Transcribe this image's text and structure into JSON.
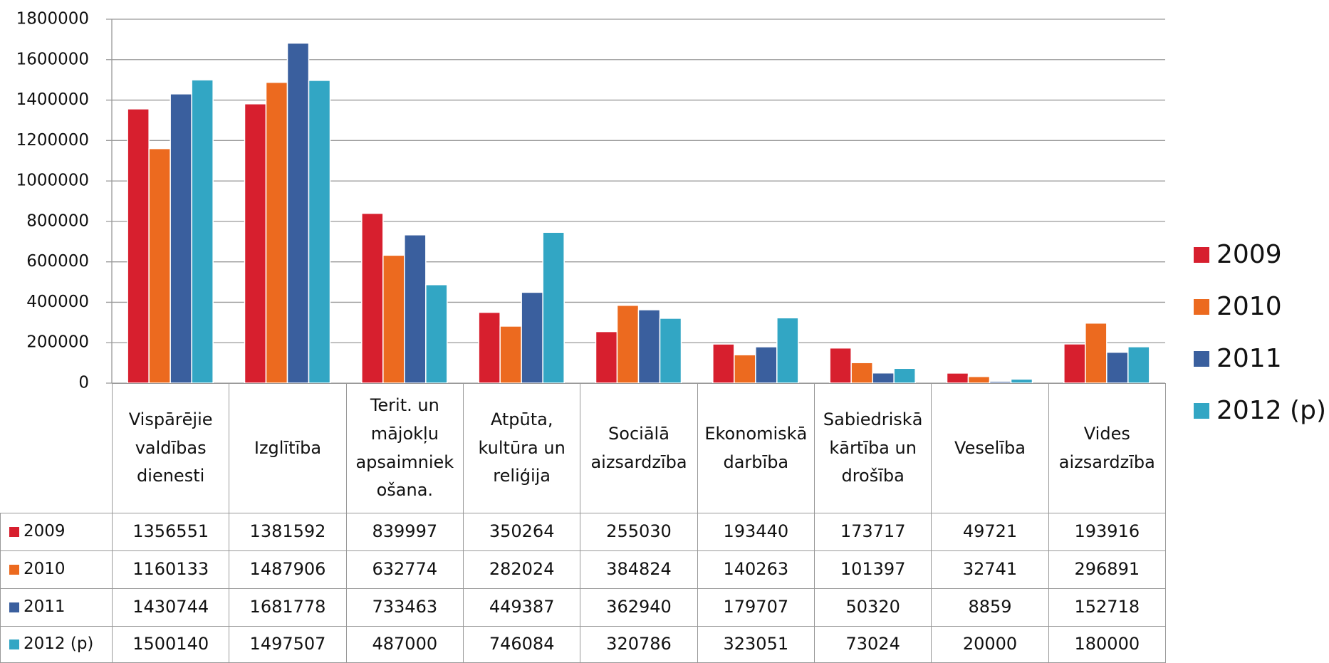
{
  "chart_data": {
    "type": "bar",
    "categories": [
      "Vispārējie valdības dienesti",
      "Izglītība",
      "Terit. un mājokļu apsaimniekošana.",
      "Atpūta, kultūra un reliģija",
      "Sociālā aizsardzība",
      "Ekonomiskā darbība",
      "Sabiedriskā kārtība un drošība",
      "Veselība",
      "Vides aizsardzība"
    ],
    "series": [
      {
        "name": "2009",
        "color": "#d71f2e",
        "values": [
          1356551,
          1381592,
          839997,
          350264,
          255030,
          193440,
          173717,
          49721,
          193916
        ]
      },
      {
        "name": "2010",
        "color": "#ec6a1f",
        "values": [
          1160133,
          1487906,
          632774,
          282024,
          384824,
          140263,
          101397,
          32741,
          296891
        ]
      },
      {
        "name": "2011",
        "color": "#3a5f9e",
        "values": [
          1430744,
          1681778,
          733463,
          449387,
          362940,
          179707,
          50320,
          8859,
          152718
        ]
      },
      {
        "name": "2012 (p)",
        "color": "#32a6c4",
        "values": [
          1500140,
          1497507,
          487000,
          746084,
          320786,
          323051,
          73024,
          20000,
          180000
        ]
      }
    ],
    "ylim": [
      0,
      1800000
    ],
    "yticks": [
      0,
      200000,
      400000,
      600000,
      800000,
      1000000,
      1200000,
      1400000,
      1600000,
      1800000
    ],
    "grid": true,
    "legend": "right"
  }
}
